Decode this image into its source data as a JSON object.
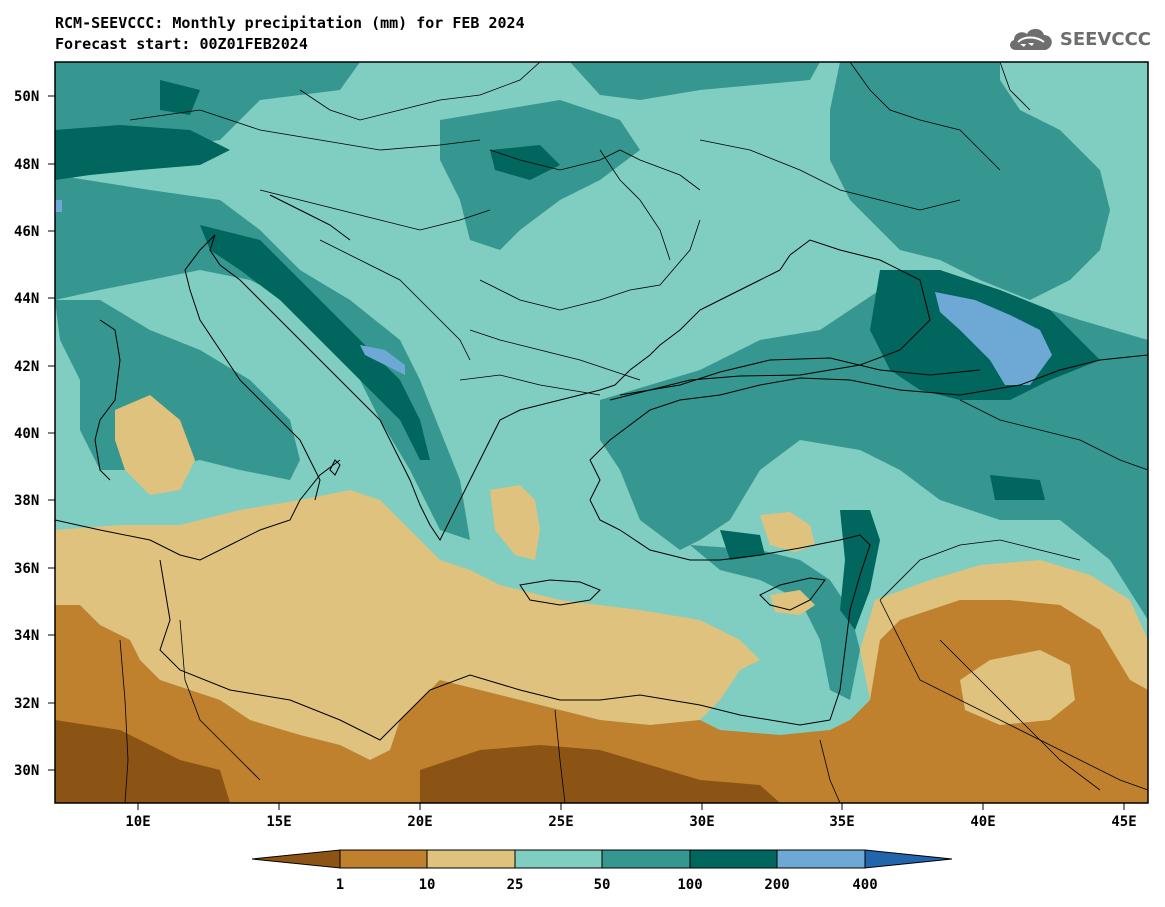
{
  "header": {
    "title_line1": "RCM-SEEVCCC: Monthly precipitation (mm) for FEB 2024",
    "title_line2": "Forecast start: 00Z01FEB2024"
  },
  "brand": {
    "name": "SEEVCCC",
    "icon": "cloud-icon"
  },
  "map": {
    "lon_ticks": [
      "10E",
      "15E",
      "20E",
      "25E",
      "30E",
      "35E",
      "40E",
      "45E"
    ],
    "lat_ticks": [
      "50N",
      "48N",
      "46N",
      "44N",
      "42N",
      "40N",
      "38N",
      "36N",
      "34N",
      "32N",
      "30N"
    ]
  },
  "colorbar": {
    "labels": [
      "1",
      "10",
      "25",
      "50",
      "100",
      "200",
      "400"
    ],
    "colors": {
      "lt1": "#8c5414",
      "1_10": "#bf812d",
      "10_25": "#dfc27d",
      "25_50": "#80cdc1",
      "50_100": "#35978f",
      "100_200": "#01665e",
      "200_400": "#6ea9d6",
      "gt400": "#2166ac"
    }
  }
}
